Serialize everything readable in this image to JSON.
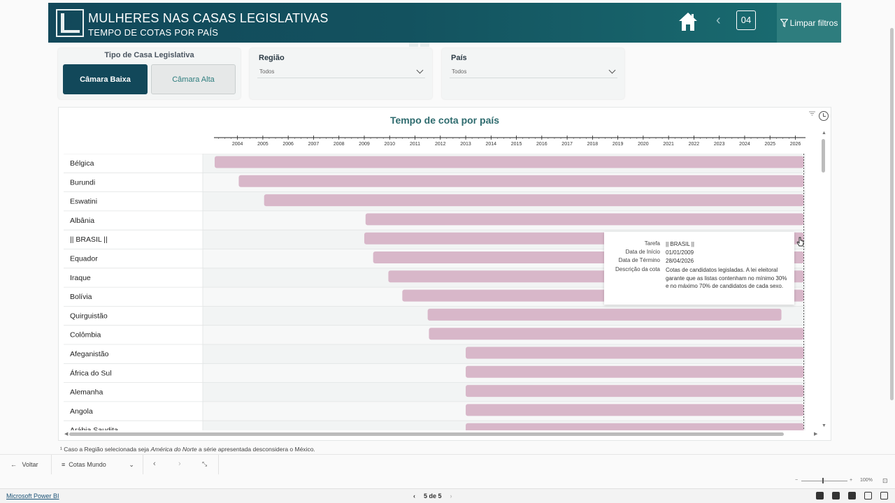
{
  "header": {
    "title": "MULHERES NAS CASAS LEGISLATIVAS",
    "subtitle": "TEMPO DE COTAS POR PAÍS",
    "page_number": "04",
    "clear_filters": "Limpar filtros",
    "colors": {
      "dark": "#12485a",
      "teal": "#2e7d7e"
    }
  },
  "house_filter": {
    "title": "Tipo de Casa Legislativa",
    "options": [
      "Câmara Baixa",
      "Câmara Alta"
    ],
    "selected": "Câmara Baixa"
  },
  "region_filter": {
    "label": "Região",
    "value": "Todos"
  },
  "country_filter": {
    "label": "País",
    "value": "Todos"
  },
  "chart": {
    "title": "Tempo de cota por país",
    "bar_color": "#d8b7c9"
  },
  "chart_data": {
    "type": "gantt",
    "title": "Tempo de cota por país",
    "x_axis": {
      "ticks": [
        "2004",
        "2005",
        "2006",
        "2007",
        "2008",
        "2009",
        "2010",
        "2011",
        "2012",
        "2013",
        "2014",
        "2015",
        "2016",
        "2017",
        "2018",
        "2019",
        "2020",
        "2021",
        "2022",
        "2023",
        "2024",
        "2025",
        "2026"
      ],
      "range": [
        "2003.1",
        "2026.4"
      ]
    },
    "rows": [
      {
        "name": "Bélgica",
        "start": 2003.1,
        "end": 2026.33
      },
      {
        "name": "Burundi",
        "start": 2004.05,
        "end": 2026.33
      },
      {
        "name": "Eswatini",
        "start": 2005.05,
        "end": 2026.33
      },
      {
        "name": "Albânia",
        "start": 2009.05,
        "end": 2026.33
      },
      {
        "name": "|| BRASIL ||",
        "start": 2009.0,
        "end": 2026.33
      },
      {
        "name": "Equador",
        "start": 2009.35,
        "end": 2026.33
      },
      {
        "name": "Iraque",
        "start": 2009.95,
        "end": 2026.33
      },
      {
        "name": "Bolívia",
        "start": 2010.5,
        "end": 2026.33
      },
      {
        "name": "Quirguistão",
        "start": 2011.5,
        "end": 2025.45
      },
      {
        "name": "Colômbia",
        "start": 2011.55,
        "end": 2026.33
      },
      {
        "name": "Afeganistão",
        "start": 2013.0,
        "end": 2026.33
      },
      {
        "name": "África do Sul",
        "start": 2013.0,
        "end": 2026.33
      },
      {
        "name": "Alemanha",
        "start": 2013.0,
        "end": 2026.33
      },
      {
        "name": "Angola",
        "start": 2013.0,
        "end": 2026.33
      },
      {
        "name": "Arábia Saudita",
        "start": 2013.0,
        "end": 2026.33
      }
    ]
  },
  "tooltip": {
    "rows": [
      {
        "key": "Tarefa",
        "value": "|| BRASIL ||"
      },
      {
        "key": "Data de Início",
        "value": "01/01/2009"
      },
      {
        "key": "Data de Término",
        "value": "28/04/2026"
      },
      {
        "key": "Descrição da cota",
        "value": "Cotas de candidatos legisladas. A lei eleitoral garante que as listas contenham no mínimo 30% e no máximo 70% de candidatos de cada sexo."
      }
    ]
  },
  "footnote": {
    "mark": "¹",
    "text_before": " Caso a Região selecionada seja ",
    "em": "América do Norte",
    "text_after": " a série apresentada desconsidera o México."
  },
  "bottom_bar": {
    "back": "Voltar",
    "pages": "Cotas Mundo"
  },
  "status_bar": {
    "link": "Microsoft Power BI",
    "pager": "5 de 5",
    "zoom": "100%"
  }
}
